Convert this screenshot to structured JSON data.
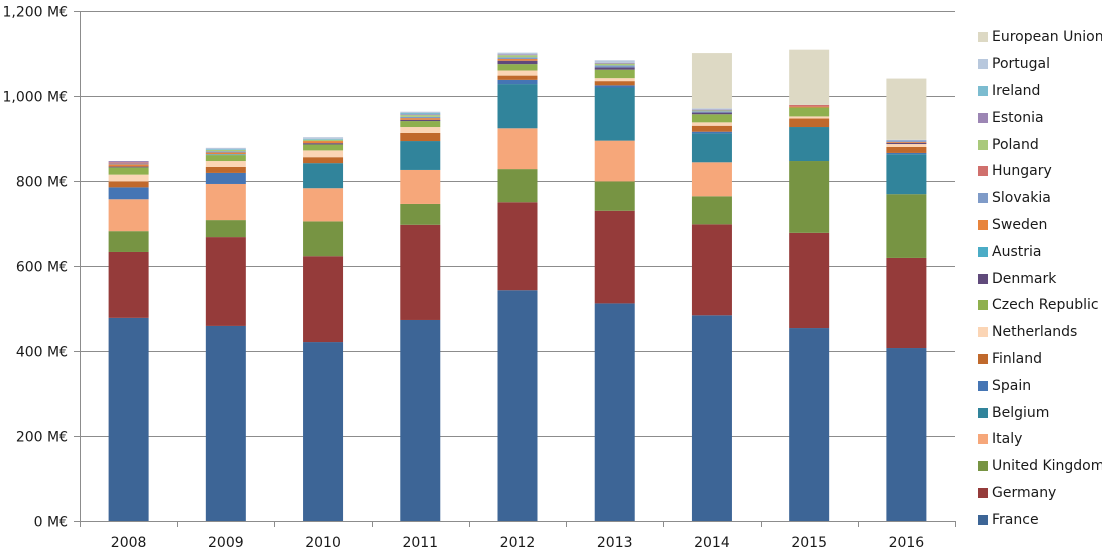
{
  "chart_data": {
    "type": "bar",
    "stacked": true,
    "title": "",
    "xlabel": "",
    "ylabel": "",
    "ylim": [
      0,
      1200
    ],
    "yticks": [
      0,
      200,
      400,
      600,
      800,
      1000,
      1200
    ],
    "ytick_labels": [
      "0 M€",
      "200 M€",
      "400 M€",
      "600 M€",
      "800 M€",
      "1,000 M€",
      "1,200 M€"
    ],
    "grid": true,
    "legend_position": "right",
    "categories": [
      "2008",
      "2009",
      "2010",
      "2011",
      "2012",
      "2013",
      "2014",
      "2015",
      "2016"
    ],
    "series": [
      {
        "name": "France",
        "color": "#3d6596",
        "values": [
          478,
          459,
          421,
          473,
          543,
          512,
          484,
          454,
          407
        ]
      },
      {
        "name": "Germany",
        "color": "#953b3a",
        "values": [
          155,
          209,
          202,
          224,
          207,
          218,
          214,
          224,
          212
        ]
      },
      {
        "name": "United Kingdom",
        "color": "#779443",
        "values": [
          49,
          40,
          82,
          49,
          78,
          69,
          66,
          169,
          150
        ]
      },
      {
        "name": "Italy",
        "color": "#f6a77a",
        "values": [
          75,
          85,
          78,
          80,
          96,
          96,
          80,
          0,
          0
        ]
      },
      {
        "name": "Belgium",
        "color": "#31849b",
        "values": [
          0,
          0,
          59,
          68,
          104,
          125,
          68,
          80,
          94
        ]
      },
      {
        "name": "Spain",
        "color": "#4575b4",
        "values": [
          28,
          26,
          0,
          0,
          10,
          5,
          4,
          0,
          3
        ]
      },
      {
        "name": "Finland",
        "color": "#c0692c",
        "values": [
          14,
          14,
          14,
          19,
          10,
          10,
          14,
          20,
          14
        ]
      },
      {
        "name": "Netherlands",
        "color": "#fbd5b5",
        "values": [
          16,
          14,
          16,
          14,
          12,
          7,
          8,
          5,
          7
        ]
      },
      {
        "name": "Czech Republic",
        "color": "#8fb04e",
        "values": [
          17,
          14,
          14,
          14,
          15,
          20,
          19,
          21,
          0
        ]
      },
      {
        "name": "Denmark",
        "color": "#604a7b",
        "values": [
          2,
          0,
          3,
          3,
          8,
          5,
          4,
          0,
          3
        ]
      },
      {
        "name": "Austria",
        "color": "#4bacc6",
        "values": [
          0,
          2,
          0,
          0,
          0,
          0,
          0,
          0,
          0
        ]
      },
      {
        "name": "Sweden",
        "color": "#e8843c",
        "values": [
          5,
          4,
          5,
          4,
          4,
          0,
          0,
          2,
          2
        ]
      },
      {
        "name": "Slovakia",
        "color": "#7f9bc8",
        "values": [
          2,
          3,
          0,
          3,
          4,
          5,
          3,
          0,
          4
        ]
      },
      {
        "name": "Hungary",
        "color": "#d0706d",
        "values": [
          3,
          0,
          0,
          0,
          0,
          0,
          0,
          4,
          0
        ]
      },
      {
        "name": "Poland",
        "color": "#a9c97b",
        "values": [
          0,
          3,
          3,
          4,
          5,
          4,
          2,
          0,
          0
        ]
      },
      {
        "name": "Estonia",
        "color": "#9c86b4",
        "values": [
          3,
          0,
          0,
          2,
          2,
          2,
          2,
          0,
          0
        ]
      },
      {
        "name": "Ireland",
        "color": "#7cbcd0",
        "values": [
          0,
          2,
          2,
          3,
          0,
          0,
          0,
          0,
          0
        ]
      },
      {
        "name": "Portugal",
        "color": "#b8c8dd",
        "values": [
          0,
          3,
          4,
          3,
          4,
          6,
          3,
          0,
          1
        ]
      },
      {
        "name": "European Union",
        "color": "#ddd9c4",
        "values": [
          0,
          0,
          0,
          0,
          0,
          0,
          130,
          130,
          144
        ]
      }
    ]
  }
}
